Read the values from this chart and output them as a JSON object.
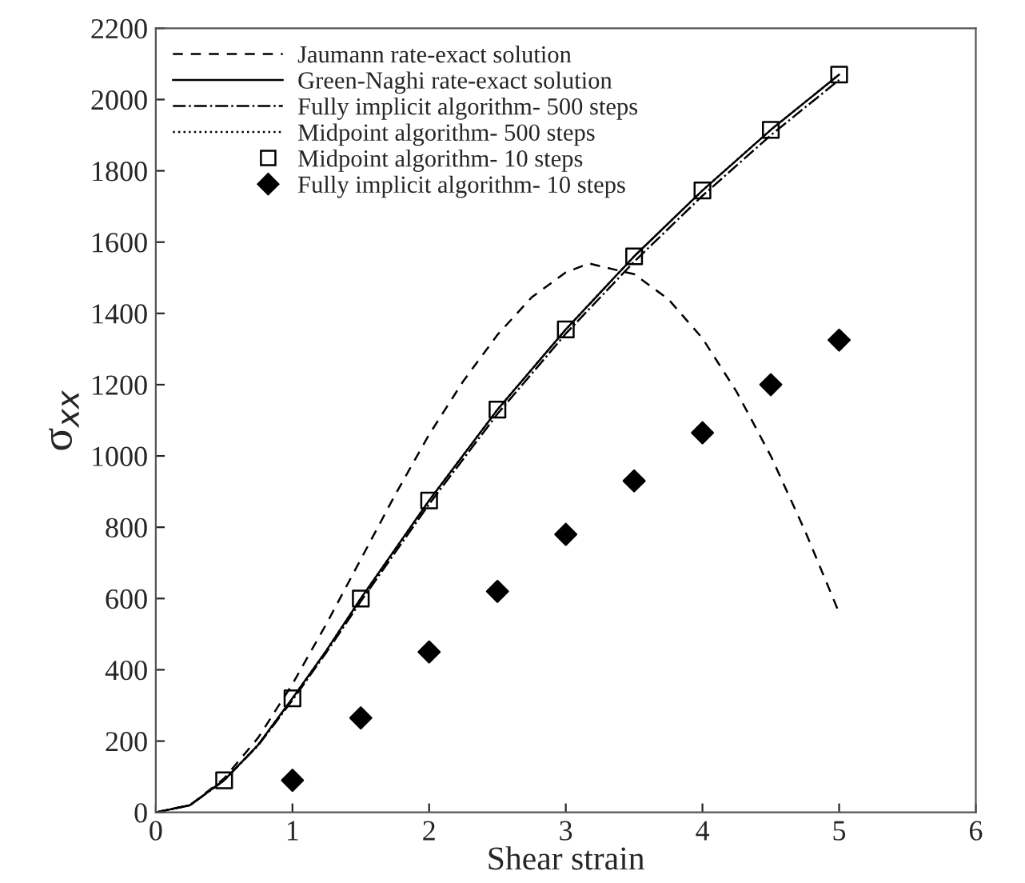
{
  "chart_data": {
    "type": "line",
    "xlabel": "Shear strain",
    "ylabel": "σ$_{xx}$",
    "xlim": [
      0,
      6
    ],
    "xticks": [
      0,
      1,
      2,
      3,
      4,
      5,
      6
    ],
    "ylim": [
      0,
      2200
    ],
    "yticks": [
      0,
      200,
      400,
      600,
      800,
      1000,
      1200,
      1400,
      1600,
      1800,
      2000,
      2200
    ],
    "grid": false,
    "legend": "top left",
    "series": [
      {
        "name": "Jaumann rate-exact solution",
        "line_style": "dashed",
        "color": "#000000",
        "x": [
          0,
          0.25,
          0.5,
          0.75,
          1,
          1.25,
          1.5,
          1.75,
          2,
          2.25,
          2.5,
          2.75,
          3,
          3.17,
          3.5,
          3.75,
          4,
          4.25,
          4.5,
          4.75,
          5
        ],
        "values": [
          0,
          20,
          95,
          210,
          360,
          530,
          710,
          890,
          1060,
          1210,
          1340,
          1445,
          1515,
          1540,
          1510,
          1440,
          1330,
          1180,
          1000,
          790,
          560
        ]
      },
      {
        "name": "Green-Naghi rate-exact solution",
        "line_style": "solid",
        "color": "#000000",
        "x": [
          0,
          0.25,
          0.5,
          0.75,
          1,
          1.25,
          1.5,
          2,
          2.5,
          3,
          3.5,
          4,
          4.5,
          5
        ],
        "values": [
          0,
          20,
          90,
          190,
          320,
          455,
          600,
          875,
          1130,
          1355,
          1560,
          1745,
          1915,
          2070
        ]
      },
      {
        "name": "Fully implicit algorithm- 500 steps",
        "line_style": "dashdot",
        "color": "#000000",
        "x": [
          0,
          0.25,
          0.5,
          0.75,
          1,
          1.25,
          1.5,
          2,
          2.5,
          3,
          3.5,
          4,
          4.5,
          5
        ],
        "values": [
          0,
          20,
          90,
          188,
          315,
          450,
          592,
          865,
          1118,
          1343,
          1545,
          1730,
          1900,
          2055
        ]
      },
      {
        "name": "Midpoint algorithm- 500 steps",
        "line_style": "dotted",
        "color": "#000000",
        "x": [
          0,
          0.25,
          0.5,
          0.75,
          1,
          1.25,
          1.5,
          2,
          2.5,
          3,
          3.5,
          4,
          4.5,
          5
        ],
        "values": [
          0,
          20,
          90,
          190,
          320,
          455,
          600,
          875,
          1130,
          1355,
          1560,
          1745,
          1915,
          2070
        ]
      },
      {
        "name": "Midpoint algorithm- 10 steps",
        "type": "scatter",
        "marker": "square",
        "color": "#000000",
        "x": [
          0.5,
          1,
          1.5,
          2,
          2.5,
          3,
          3.5,
          4,
          4.5,
          5
        ],
        "values": [
          90,
          320,
          600,
          875,
          1130,
          1355,
          1560,
          1745,
          1915,
          2070
        ]
      },
      {
        "name": "Fully implicit algorithm- 10 steps",
        "type": "scatter",
        "marker": "diamond",
        "color": "#000000",
        "x": [
          1,
          1.5,
          2,
          2.5,
          3,
          3.5,
          4,
          4.5,
          5
        ],
        "values": [
          90,
          265,
          450,
          620,
          780,
          930,
          1065,
          1200,
          1325
        ]
      }
    ]
  }
}
